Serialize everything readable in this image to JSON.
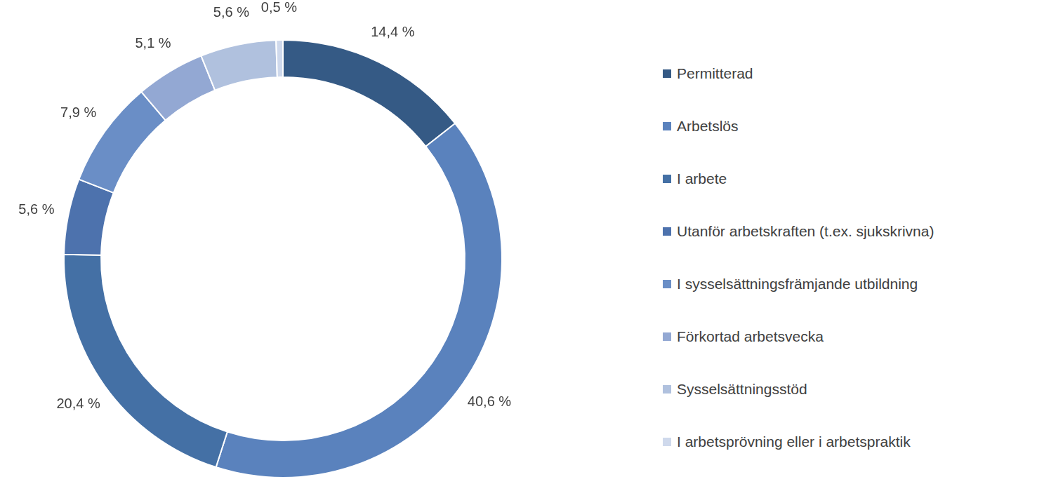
{
  "chart_data": {
    "type": "doughnut",
    "categories": [
      "Permitterad",
      "Arbetslös",
      "I arbete",
      "Utanför arbetskraften (t.ex. sjukskrivna)",
      "I sysselsättningsfrämjande utbildning",
      "Förkortad arbetsvecka",
      "Sysselsättningsstöd",
      "I arbetsprövning eller i arbetspraktik"
    ],
    "values": [
      14.4,
      40.6,
      20.4,
      5.6,
      7.9,
      5.1,
      5.6,
      0.5
    ],
    "value_labels": [
      "14,4 %",
      "40,6 %",
      "20,4 %",
      "5,6 %",
      "7,9 %",
      "5,1 %",
      "5,6 %",
      "0,5 %"
    ],
    "colors": [
      "#355a85",
      "#5a82bd",
      "#4470a5",
      "#4d72ad",
      "#6a8ec6",
      "#93a8d3",
      "#b0c1de",
      "#cfd9ec"
    ],
    "data_labels": true,
    "legend": "right"
  }
}
